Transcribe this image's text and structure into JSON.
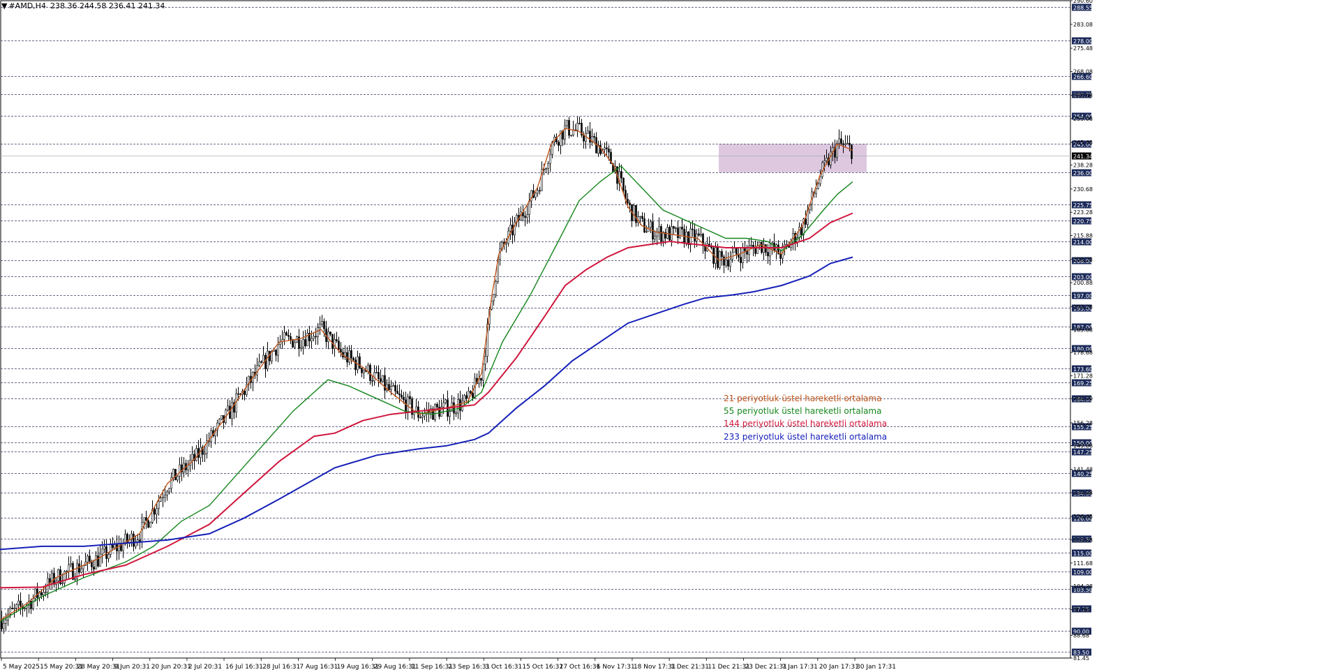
{
  "header": {
    "symbol": "#AMD,H4",
    "ohlc": "238.36 244.58 236.41 241.34",
    "arrow": "▼"
  },
  "chart_data": {
    "type": "candlestick",
    "symbol": "#AMD",
    "timeframe": "H4",
    "last_price": "241.34",
    "ylim": [
      81.45,
      290.6
    ],
    "y_ticks": [
      "290.60",
      "283.08",
      "275.48",
      "268.08",
      "260.48",
      "253.08",
      "245.48",
      "238.28",
      "230.68",
      "223.28",
      "215.88",
      "208.28",
      "200.88",
      "193.28",
      "185.88",
      "178.68",
      "171.28",
      "164.00",
      "156.28",
      "149.08",
      "141.48",
      "134.08",
      "126.48",
      "119.08",
      "111.68",
      "104.28",
      "96.88",
      "88.68",
      "81.45"
    ],
    "horizontal_levels": [
      "288.55",
      "278.00",
      "266.60",
      "260.75",
      "254.00",
      "245.00",
      "236.00",
      "225.75",
      "220.75",
      "214.00",
      "208.00",
      "203.00",
      "197.00",
      "193.00",
      "187.00",
      "180.00",
      "173.60",
      "169.25",
      "164.00",
      "155.25",
      "150.00",
      "147.25",
      "140.25",
      "134.00",
      "126.00",
      "119.50",
      "115.00",
      "109.00",
      "103.50",
      "97.25",
      "90.00",
      "83.50"
    ],
    "x_ticks": [
      "5 May 2025",
      "15 May 20:31",
      "28 May 20:31",
      "9 Jun 20:31",
      "20 Jun 20:31",
      "2 Jul 20:31",
      "16 Jul 16:31",
      "28 Jul 16:31",
      "7 Aug 16:31",
      "19 Aug 16:31",
      "29 Aug 16:31",
      "11 Sep 16:31",
      "23 Sep 16:31",
      "3 Oct 16:31",
      "15 Oct 16:31",
      "27 Oct 16:31",
      "6 Nov 17:31",
      "18 Nov 17:31",
      "1 Dec 21:31",
      "11 Dec 21:31",
      "23 Dec 21:31",
      "7 Jan 17:31",
      "20 Jan 17:31",
      "30 Jan 17:31"
    ],
    "zone": {
      "low": 236.0,
      "high": 245.0,
      "color": "#d9c2dd"
    },
    "series": [
      {
        "name": "21 periyotluk üstel hareketli ortalama",
        "color": "#c0561d",
        "points": [
          [
            0,
            93.5
          ],
          [
            40,
            99
          ],
          [
            80,
            107
          ],
          [
            140,
            113
          ],
          [
            200,
            121
          ],
          [
            240,
            137
          ],
          [
            280,
            145
          ],
          [
            320,
            157
          ],
          [
            360,
            170
          ],
          [
            400,
            182
          ],
          [
            430,
            183
          ],
          [
            460,
            186
          ],
          [
            490,
            178
          ],
          [
            520,
            174
          ],
          [
            560,
            166
          ],
          [
            600,
            159
          ],
          [
            640,
            161
          ],
          [
            670,
            163
          ],
          [
            690,
            172
          ],
          [
            705,
            197
          ],
          [
            715,
            210
          ],
          [
            740,
            220
          ],
          [
            770,
            231
          ],
          [
            790,
            245
          ],
          [
            810,
            250
          ],
          [
            830,
            249
          ],
          [
            860,
            244
          ],
          [
            880,
            238
          ],
          [
            900,
            225
          ],
          [
            920,
            219
          ],
          [
            940,
            217
          ],
          [
            970,
            216
          ],
          [
            1000,
            215
          ],
          [
            1030,
            208
          ],
          [
            1060,
            210
          ],
          [
            1090,
            213
          ],
          [
            1120,
            210
          ],
          [
            1150,
            219
          ],
          [
            1175,
            235
          ],
          [
            1200,
            245
          ],
          [
            1222,
            243
          ]
        ]
      },
      {
        "name": "55 periyotluk üstel hareketli ortalama",
        "color": "#15861c",
        "points": [
          [
            0,
            93
          ],
          [
            60,
            101
          ],
          [
            120,
            107
          ],
          [
            180,
            112
          ],
          [
            220,
            117
          ],
          [
            260,
            125
          ],
          [
            300,
            130
          ],
          [
            340,
            140
          ],
          [
            380,
            150
          ],
          [
            420,
            160
          ],
          [
            470,
            170
          ],
          [
            500,
            168
          ],
          [
            540,
            164
          ],
          [
            580,
            160
          ],
          [
            620,
            159
          ],
          [
            660,
            161
          ],
          [
            690,
            166
          ],
          [
            720,
            182
          ],
          [
            760,
            197
          ],
          [
            800,
            214
          ],
          [
            830,
            227
          ],
          [
            860,
            233
          ],
          [
            890,
            238
          ],
          [
            920,
            231
          ],
          [
            950,
            224
          ],
          [
            980,
            221
          ],
          [
            1010,
            218
          ],
          [
            1040,
            215
          ],
          [
            1070,
            215
          ],
          [
            1100,
            214
          ],
          [
            1120,
            211
          ],
          [
            1150,
            216
          ],
          [
            1180,
            224
          ],
          [
            1200,
            229
          ],
          [
            1222,
            233
          ]
        ]
      },
      {
        "name": "144 periyotluk üstel hareketli ortalama",
        "color": "#d0163c",
        "points": [
          [
            0,
            103.8
          ],
          [
            60,
            104
          ],
          [
            120,
            108
          ],
          [
            180,
            111
          ],
          [
            240,
            117
          ],
          [
            300,
            124
          ],
          [
            350,
            134
          ],
          [
            400,
            144
          ],
          [
            450,
            152
          ],
          [
            480,
            153
          ],
          [
            520,
            157
          ],
          [
            560,
            159
          ],
          [
            600,
            160
          ],
          [
            640,
            161
          ],
          [
            680,
            162
          ],
          [
            700,
            166
          ],
          [
            740,
            177
          ],
          [
            780,
            190
          ],
          [
            810,
            200
          ],
          [
            840,
            205
          ],
          [
            870,
            209
          ],
          [
            900,
            212
          ],
          [
            930,
            213
          ],
          [
            960,
            214
          ],
          [
            1000,
            213
          ],
          [
            1040,
            212
          ],
          [
            1080,
            212
          ],
          [
            1120,
            212
          ],
          [
            1160,
            215
          ],
          [
            1190,
            220
          ],
          [
            1222,
            223
          ]
        ]
      },
      {
        "name": "233 periyotluk üstel hareketli ortalama",
        "color": "#1520b8",
        "points": [
          [
            0,
            116
          ],
          [
            60,
            117
          ],
          [
            120,
            117
          ],
          [
            180,
            118
          ],
          [
            240,
            119
          ],
          [
            300,
            121
          ],
          [
            350,
            126
          ],
          [
            400,
            132
          ],
          [
            440,
            137
          ],
          [
            480,
            142
          ],
          [
            540,
            146
          ],
          [
            600,
            148
          ],
          [
            640,
            149
          ],
          [
            680,
            151
          ],
          [
            700,
            153
          ],
          [
            740,
            161
          ],
          [
            780,
            168
          ],
          [
            820,
            176
          ],
          [
            860,
            182
          ],
          [
            900,
            188
          ],
          [
            940,
            191
          ],
          [
            980,
            194
          ],
          [
            1010,
            196
          ],
          [
            1050,
            197
          ],
          [
            1080,
            198
          ],
          [
            1120,
            200
          ],
          [
            1160,
            203
          ],
          [
            1190,
            207
          ],
          [
            1222,
            209
          ]
        ]
      }
    ]
  }
}
